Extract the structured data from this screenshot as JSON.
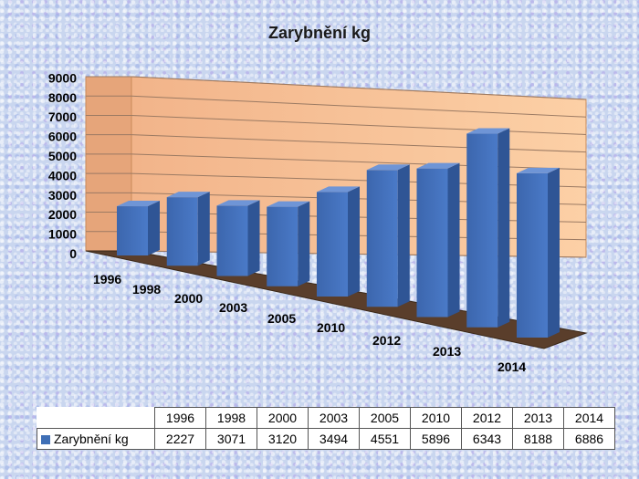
{
  "chart_data": {
    "type": "bar",
    "title": "Zarybnění kg",
    "categories": [
      "1996",
      "1998",
      "2000",
      "2003",
      "2005",
      "2010",
      "2012",
      "2013",
      "2014"
    ],
    "series": [
      {
        "name": "Zarybnění kg",
        "values": [
          2227,
          3071,
          3120,
          3494,
          4551,
          5896,
          6343,
          8188,
          6886
        ],
        "color": "#4472c4"
      }
    ],
    "y_ticks": [
      "0",
      "1000",
      "2000",
      "3000",
      "4000",
      "5000",
      "6000",
      "7000",
      "8000",
      "9000"
    ],
    "ylim": [
      0,
      9000
    ],
    "grid": true,
    "wall_color": "#fbc99d",
    "floor_color": "#5a3e2b"
  },
  "data_table": {
    "header": [
      "1996",
      "1998",
      "2000",
      "2003",
      "2005",
      "2010",
      "2012",
      "2013",
      "2014"
    ],
    "row_label": "Zarybnění kg",
    "row_values": [
      "2227",
      "3071",
      "3120",
      "3494",
      "4551",
      "5896",
      "6343",
      "8188",
      "6886"
    ]
  }
}
